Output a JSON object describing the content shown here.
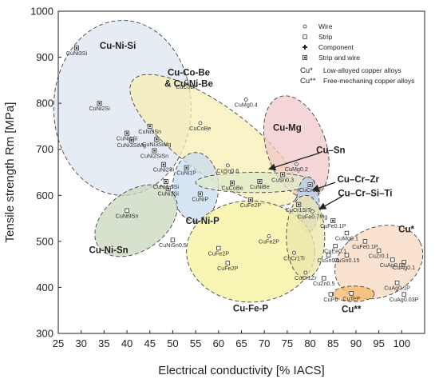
{
  "chart_data": {
    "type": "scatter",
    "xlabel": "Electrical conductivity [% IACS]",
    "ylabel": "Tensile strength Rm [MPa]",
    "xlim": [
      25,
      105
    ],
    "ylim": [
      300,
      1000
    ],
    "xticks": [
      25,
      30,
      35,
      40,
      45,
      50,
      55,
      60,
      65,
      70,
      75,
      80,
      85,
      90,
      95,
      100
    ],
    "yticks": [
      300,
      400,
      500,
      600,
      700,
      800,
      900,
      1000
    ],
    "grid": false,
    "legend_position": "top-right",
    "legend": [
      {
        "marker": "circle",
        "text": "Wire"
      },
      {
        "marker": "square",
        "text": "Strip"
      },
      {
        "marker": "plus",
        "text": "Component"
      },
      {
        "marker": "square-dot",
        "text": "Strip and wire"
      }
    ],
    "legend_notes": [
      {
        "symbol": "Cu*",
        "text": "Low-alloyed copper alloys"
      },
      {
        "symbol": "Cu**",
        "text": "Free-mechaning copper alloys"
      }
    ],
    "groups": [
      {
        "label": "Cu-Ni-Si",
        "color": "#dde6f0",
        "cx": 39,
        "cy": 790,
        "rx": 15,
        "ry": 190,
        "angle": 0,
        "label_x": 38,
        "label_y": 918
      },
      {
        "label": "Cu-Co-Be & Cu-Ni-Be",
        "color": "#f8efb4",
        "cx": 59,
        "cy": 720,
        "rx": 22,
        "ry": 75,
        "angle": 36,
        "label_x": 53.5,
        "label_y": 860,
        "label_lines": [
          "Cu-Co-Be",
          "& Cu-Ni-Be"
        ]
      },
      {
        "label": "Cu-Mg",
        "color": "#f0c8c8",
        "cx": 77,
        "cy": 705,
        "rx": 6.5,
        "ry": 115,
        "angle": -18,
        "label_x": 75,
        "label_y": 740
      },
      {
        "label": "Cu-Ni-P",
        "color": "#c8dcef",
        "cx": 55,
        "cy": 618,
        "rx": 5,
        "ry": 75,
        "angle": 0,
        "label_x": 56.5,
        "label_y": 538
      },
      {
        "label": "Cu-Ni-Sn",
        "color": "#c8d8be",
        "cx": 42,
        "cy": 545,
        "rx": 10,
        "ry": 65,
        "angle": -35,
        "label_x": 36,
        "label_y": 475
      },
      {
        "label": "Cu–Sn",
        "color": "#dde9c8",
        "cx": 68,
        "cy": 628,
        "rx": 13,
        "ry": 22,
        "angle": 0,
        "label_x": 84.5,
        "label_y": 692
      },
      {
        "label": "Cu–Cr–Zr",
        "color": "#b4cbe8",
        "cx": 79.5,
        "cy": 580,
        "rx": 2.5,
        "ry": 60,
        "angle": 0,
        "label_x": 90.5,
        "label_y": 628
      },
      {
        "label": "Cu-Fe-P",
        "color": "#f6f29c",
        "cx": 67,
        "cy": 478,
        "rx": 14,
        "ry": 110,
        "angle": 0,
        "label_x": 67,
        "label_y": 348
      },
      {
        "label": "Cu–Cr–Si–Ti",
        "color": "#ebe6a8",
        "cx": 79,
        "cy": 510,
        "rx": 4.2,
        "ry": 90,
        "angle": 0,
        "label_x": 92,
        "label_y": 598
      },
      {
        "label": "Cu*",
        "color": "#f7d8c0",
        "cx": 95,
        "cy": 455,
        "rx": 10,
        "ry": 75,
        "angle": -25,
        "label_x": 101,
        "label_y": 520
      },
      {
        "label": "Cu**",
        "color": "#f6b86a",
        "cx": 89.5,
        "cy": 386,
        "rx": 4.5,
        "ry": 17,
        "angle": 0,
        "label_x": 89,
        "label_y": 346
      }
    ],
    "arrows": [
      {
        "from": [
          82,
          692
        ],
        "to": [
          71,
          657
        ]
      },
      {
        "from": [
          85.5,
          628
        ],
        "to": [
          80.5,
          611
        ]
      },
      {
        "from": [
          87,
          598
        ],
        "to": [
          82,
          570
        ]
      }
    ],
    "points": [
      {
        "label": "CuNi3Si",
        "x": 29,
        "y": 920,
        "marker": "square-dot"
      },
      {
        "label": "CuNi2Si",
        "x": 34,
        "y": 800,
        "marker": "square-dot"
      },
      {
        "label": "CuNi1Si",
        "x": 40,
        "y": 735,
        "marker": "square-dot"
      },
      {
        "label": "CuNi3SiMg",
        "x": 41,
        "y": 720,
        "marker": "square-dot"
      },
      {
        "label": "CuNi3Sn",
        "x": 45,
        "y": 750,
        "marker": "square-dot"
      },
      {
        "label": "CuNi3SiMg",
        "x": 46.5,
        "y": 722,
        "marker": "square-dot"
      },
      {
        "label": "CuNi2SiSn",
        "x": 46,
        "y": 697,
        "marker": "square-dot"
      },
      {
        "label": "CuNi2Si",
        "x": 48,
        "y": 667,
        "marker": "square-dot"
      },
      {
        "label": "CuNi1.5Si",
        "x": 48.5,
        "y": 630,
        "marker": "square-dot"
      },
      {
        "label": "CuNi1Si",
        "x": 49,
        "y": 615,
        "marker": "square-dot"
      },
      {
        "label": "CuNi1P",
        "x": 53,
        "y": 660,
        "marker": "square-dot"
      },
      {
        "label": "CuNiP",
        "x": 56,
        "y": 603,
        "marker": "square-dot"
      },
      {
        "label": "CuCoBe",
        "x": 53,
        "y": 847,
        "marker": "circle"
      },
      {
        "label": "CuCoBe",
        "x": 56,
        "y": 757,
        "marker": "circle"
      },
      {
        "label": "CuSn0.6",
        "x": 62,
        "y": 665,
        "marker": "circle"
      },
      {
        "label": "CuCoBe",
        "x": 63,
        "y": 627,
        "marker": "square-dot"
      },
      {
        "label": "CuNiBe",
        "x": 69,
        "y": 630,
        "marker": "square-dot"
      },
      {
        "label": "CuSn0.3",
        "x": 74,
        "y": 645,
        "marker": "square-dot"
      },
      {
        "label": "CuMg0.4",
        "x": 66,
        "y": 808,
        "marker": "circle"
      },
      {
        "label": "CuMg0.2",
        "x": 77,
        "y": 668,
        "marker": "circle"
      },
      {
        "label": "CuCr1Zr",
        "x": 80,
        "y": 623,
        "marker": "square-dot"
      },
      {
        "label": "CuCr1SiTi",
        "x": 77.5,
        "y": 580,
        "marker": "square-dot"
      },
      {
        "label": "CuFe2P",
        "x": 67,
        "y": 590,
        "marker": "square-dot"
      },
      {
        "label": "CuNi9Sn",
        "x": 40,
        "y": 567,
        "marker": "square"
      },
      {
        "label": "CuNiSn0.5",
        "x": 50,
        "y": 503,
        "marker": "square"
      },
      {
        "label": "CuFe2P",
        "x": 60,
        "y": 485,
        "marker": "square"
      },
      {
        "label": "CuFe2P",
        "x": 71,
        "y": 511,
        "marker": "circle"
      },
      {
        "label": "CuFe2P",
        "x": 62,
        "y": 453,
        "marker": "square"
      },
      {
        "label": "CuFe0.7Mg",
        "x": 80.5,
        "y": 565,
        "marker": "circle"
      },
      {
        "label": "CuCr1Ti",
        "x": 76.5,
        "y": 475,
        "marker": "circle"
      },
      {
        "label": "CuCr1Zr",
        "x": 79,
        "y": 432,
        "marker": "circle"
      },
      {
        "label": "CuFe0.1P",
        "x": 85,
        "y": 545,
        "marker": "square-dot"
      },
      {
        "label": "CuEe0.1",
        "x": 85.5,
        "y": 490,
        "marker": "square"
      },
      {
        "label": "CuSn0.15",
        "x": 88,
        "y": 470,
        "marker": "square"
      },
      {
        "label": "CuSn0.1",
        "x": 84,
        "y": 470,
        "marker": "square"
      },
      {
        "label": "CuMg0.1",
        "x": 88,
        "y": 518,
        "marker": "square"
      },
      {
        "label": "CuFe0.1P",
        "x": 92,
        "y": 500,
        "marker": "square"
      },
      {
        "label": "CuZr0.1",
        "x": 95,
        "y": 480,
        "marker": "square"
      },
      {
        "label": "CuAg0.03",
        "x": 98,
        "y": 460,
        "marker": "square"
      },
      {
        "label": "CuAg0.1",
        "x": 100.5,
        "y": 455,
        "marker": "square"
      },
      {
        "label": "CuAg0.1P",
        "x": 99,
        "y": 410,
        "marker": "square"
      },
      {
        "label": "CuAg0.03P",
        "x": 100.5,
        "y": 385,
        "marker": "square"
      },
      {
        "label": "CuZn0.5",
        "x": 83,
        "y": 420,
        "marker": "square"
      },
      {
        "label": "CuPb",
        "x": 84.5,
        "y": 385,
        "marker": "square"
      },
      {
        "label": "CuTeP",
        "x": 89,
        "y": 387,
        "marker": "square"
      }
    ]
  }
}
